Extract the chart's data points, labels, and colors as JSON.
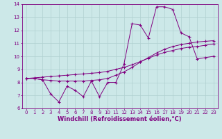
{
  "x_data": [
    0,
    1,
    2,
    3,
    4,
    5,
    6,
    7,
    8,
    9,
    10,
    11,
    12,
    13,
    14,
    15,
    16,
    17,
    18,
    19,
    20,
    21,
    22,
    23
  ],
  "line1_y": [
    8.3,
    8.3,
    8.2,
    7.1,
    6.5,
    7.7,
    7.4,
    6.9,
    8.1,
    6.9,
    8.0,
    8.0,
    9.4,
    12.5,
    12.4,
    11.4,
    13.8,
    13.8,
    13.6,
    11.8,
    11.5,
    9.8,
    9.9,
    10.0
  ],
  "line2_y": [
    8.3,
    8.3,
    8.2,
    8.15,
    8.1,
    8.1,
    8.1,
    8.1,
    8.15,
    8.2,
    8.3,
    8.55,
    8.8,
    9.15,
    9.55,
    9.9,
    10.25,
    10.55,
    10.75,
    10.9,
    11.0,
    11.1,
    11.15,
    11.2
  ],
  "line3_y": [
    8.3,
    8.35,
    8.4,
    8.45,
    8.5,
    8.55,
    8.6,
    8.65,
    8.7,
    8.75,
    8.85,
    9.0,
    9.15,
    9.35,
    9.6,
    9.85,
    10.1,
    10.3,
    10.45,
    10.6,
    10.7,
    10.75,
    10.85,
    10.95
  ],
  "xlabel": "Windchill (Refroidissement éolien,°C)",
  "ylim": [
    6,
    14
  ],
  "xlim": [
    -0.5,
    23.5
  ],
  "yticks": [
    6,
    7,
    8,
    9,
    10,
    11,
    12,
    13,
    14
  ],
  "xticks": [
    0,
    1,
    2,
    3,
    4,
    5,
    6,
    7,
    8,
    9,
    10,
    11,
    12,
    13,
    14,
    15,
    16,
    17,
    18,
    19,
    20,
    21,
    22,
    23
  ],
  "line_color": "#800080",
  "bg_color": "#cce8e8",
  "grid_color": "#b0d0d0",
  "axis_color": "#800080",
  "text_color": "#800080",
  "tick_fontsize": 5,
  "xlabel_fontsize": 6
}
